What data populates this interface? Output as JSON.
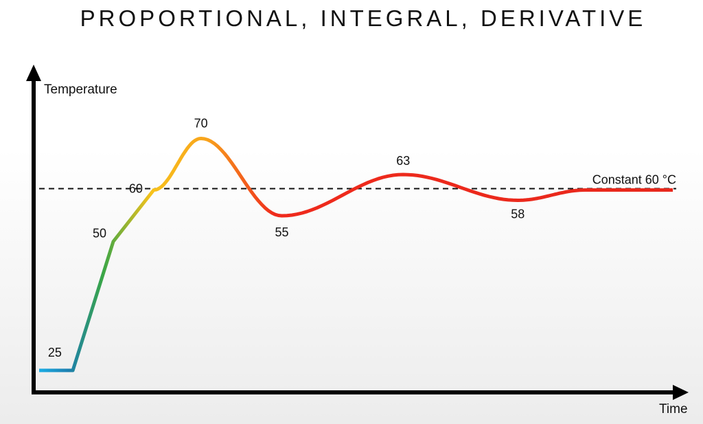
{
  "chart_data": {
    "type": "line",
    "title": "PROPORTIONAL, INTEGRAL, DERIVATIVE",
    "xlabel": "Time",
    "ylabel": "Temperature",
    "grid": false,
    "series": [
      {
        "points": [
          {
            "t": 0,
            "temp": 25
          },
          {
            "t": 0.5,
            "temp": 25
          },
          {
            "t": 1.1,
            "temp": 50
          },
          {
            "t": 1.7,
            "temp": 60
          },
          {
            "t": 2.4,
            "temp": 70
          },
          {
            "t": 3.6,
            "temp": 55
          },
          {
            "t": 5.4,
            "temp": 63
          },
          {
            "t": 7.1,
            "temp": 58
          },
          {
            "t": 8.1,
            "temp": 60
          },
          {
            "t": 9.4,
            "temp": 60
          }
        ]
      }
    ],
    "reference_line": {
      "value": 60,
      "label": "Constant 60 °C",
      "style": "dashed"
    },
    "point_labels": [
      {
        "t": 0.05,
        "temp": 25,
        "text": "25"
      },
      {
        "t": 1.1,
        "temp": 50,
        "text": "50"
      },
      {
        "t": 1.7,
        "temp": 60,
        "text": "60"
      },
      {
        "t": 2.4,
        "temp": 70,
        "text": "70"
      },
      {
        "t": 3.6,
        "temp": 55,
        "text": "55"
      },
      {
        "t": 5.4,
        "temp": 63,
        "text": "63"
      },
      {
        "t": 7.1,
        "temp": 58,
        "text": "58"
      }
    ],
    "gradient_colors": [
      "#1ab4ee",
      "#1c7fb0",
      "#3aa646",
      "#f7c21b",
      "#f8a41c",
      "#ef2a1c",
      "#e8281c"
    ]
  }
}
